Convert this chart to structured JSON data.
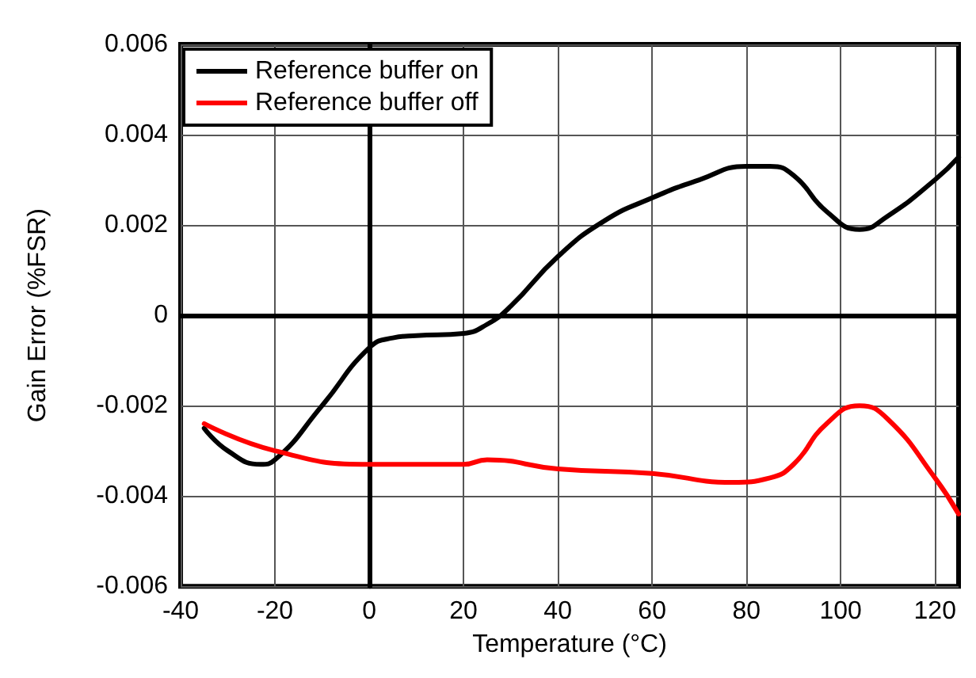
{
  "chart_data": {
    "type": "line",
    "xlabel": "Temperature (°C)",
    "ylabel": "Gain Error (%FSR)",
    "xlim": [
      -40,
      125
    ],
    "xticks": [
      -40,
      -20,
      0,
      20,
      40,
      60,
      80,
      100,
      120
    ],
    "ylim": [
      -0.006,
      0.006
    ],
    "yticks": [
      -0.006,
      -0.004,
      -0.002,
      0,
      0.002,
      0.004,
      0.006
    ],
    "grid": true,
    "legend": "top left",
    "marker": "none",
    "line_style": "solid",
    "series": [
      {
        "name": "Reference buffer on",
        "color": "#000000",
        "x": [
          -35,
          -30,
          -23,
          -20,
          -10,
          0,
          5,
          10,
          20,
          25,
          30,
          40,
          50,
          60,
          70,
          80,
          85,
          90,
          97,
          104,
          110,
          120,
          125
        ],
        "values": [
          -0.0025,
          -0.003,
          -0.0033,
          -0.0032,
          -0.002,
          -0.00072,
          -0.0005,
          -0.00045,
          -0.0004,
          -0.0002,
          0.0002,
          0.0013,
          0.0021,
          0.0026,
          0.003,
          0.0033,
          0.0033,
          0.0031,
          0.0023,
          0.0019,
          0.0022,
          0.003,
          0.0035
        ]
      },
      {
        "name": "Reference buffer off",
        "color": "#ff0000",
        "x": [
          -35,
          -20,
          0,
          20,
          25,
          40,
          60,
          77,
          85,
          90,
          97,
          104,
          110,
          120,
          125
        ],
        "values": [
          -0.0024,
          -0.003,
          -0.0033,
          -0.0033,
          -0.0032,
          -0.0034,
          -0.0035,
          -0.0037,
          -0.0036,
          -0.0033,
          -0.0024,
          -0.002,
          -0.0023,
          -0.0036,
          -0.0044
        ]
      }
    ]
  }
}
